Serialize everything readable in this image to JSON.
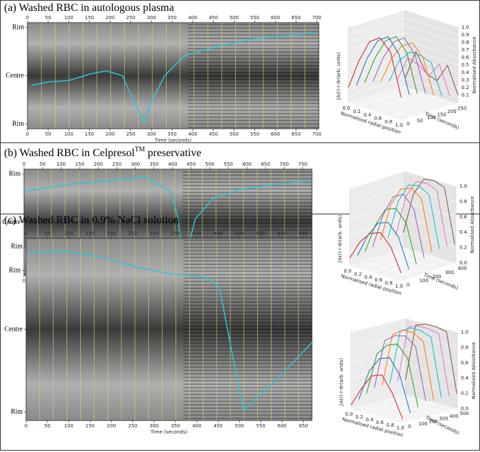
{
  "chart_data": [
    {
      "type": "kymograph",
      "title": "(a)  Washed RBC in autologous plasma",
      "xlabel": "Time (seconds)",
      "xlim": [
        0,
        705
      ],
      "xticks": [
        0,
        50,
        100,
        150,
        200,
        250,
        300,
        350,
        400,
        450,
        500,
        550,
        600,
        650,
        700
      ],
      "ylim": [
        -1.1,
        1.1
      ],
      "yticks": [
        {
          "value": 1,
          "label": "Rim"
        },
        {
          "value": 0,
          "label": "Centre"
        },
        {
          "value": -1,
          "label": "Rim"
        }
      ],
      "x": [
        10,
        50,
        100,
        150,
        190,
        230,
        250,
        265,
        282,
        300,
        332,
        380,
        465,
        547,
        700
      ],
      "values": [
        -0.2,
        -0.13,
        -0.1,
        0.03,
        0.1,
        0,
        -0.4,
        -0.67,
        -0.97,
        -0.54,
        0,
        0.41,
        0.62,
        0.76,
        0.89
      ],
      "color": "#2ec4d6"
    },
    {
      "type": "surface3d",
      "side_label": "∫A(r)·r·dr(arb. units)",
      "xlabel": "Normalised radial position",
      "ylabel": "Time (seconds)",
      "zlabel": "Normalised Absorbance",
      "xlim": [
        0,
        1
      ],
      "xticks": [
        {
          "value": 0,
          "label": "0.0"
        },
        {
          "value": 0.2,
          "label": "0.2"
        },
        {
          "value": 0.4,
          "label": "0.4"
        },
        {
          "value": 0.6,
          "label": "0.6"
        },
        {
          "value": 0.8,
          "label": "0.8"
        },
        {
          "value": 1,
          "label": "1.0"
        }
      ],
      "ylim": [
        0,
        280
      ],
      "yticks": [
        0,
        50,
        100,
        150,
        200,
        250
      ],
      "zlim": [
        0,
        1
      ],
      "zticks": [
        {
          "value": 0.1,
          "label": "0.1"
        },
        {
          "value": 0.2,
          "label": "0.2"
        },
        {
          "value": 0.3,
          "label": "0.3"
        },
        {
          "value": 0.4,
          "label": "0.4"
        },
        {
          "value": 0.5,
          "label": "0.5"
        },
        {
          "value": 0.6,
          "label": "0.6"
        },
        {
          "value": 0.7,
          "label": "0.7"
        },
        {
          "value": 0.8,
          "label": "0.8"
        },
        {
          "value": 0.9,
          "label": "0.9"
        },
        {
          "value": 1,
          "label": "1.0"
        }
      ],
      "x": [
        0,
        0.2,
        0.4,
        0.6,
        0.8,
        1
      ],
      "profiles": [
        {
          "time": 0,
          "color": "#d62728",
          "values": [
            0.2,
            0.6,
            0.9,
            1.0,
            0.85,
            0.3
          ]
        },
        {
          "time": 40,
          "color": "#1f77b4",
          "values": [
            0.2,
            0.6,
            0.88,
            0.98,
            0.8,
            0.3
          ]
        },
        {
          "time": 80,
          "color": "#2ca02c",
          "values": [
            0.2,
            0.58,
            0.85,
            0.95,
            0.78,
            0.28
          ]
        },
        {
          "time": 120,
          "color": "#9467bd",
          "values": [
            0.18,
            0.55,
            0.8,
            0.9,
            0.72,
            0.25
          ]
        },
        {
          "time": 160,
          "color": "#ff7f0e",
          "values": [
            0.15,
            0.5,
            0.72,
            0.8,
            0.65,
            0.2
          ]
        },
        {
          "time": 200,
          "color": "#17becf",
          "values": [
            0.12,
            0.45,
            0.6,
            0.6,
            0.55,
            0.15
          ]
        },
        {
          "time": 240,
          "color": "#e377c2",
          "values": [
            0.1,
            0.45,
            0.4,
            0.3,
            0.5,
            0.12
          ]
        },
        {
          "time": 280,
          "color": "#8c564b",
          "values": [
            0.1,
            0.5,
            0.25,
            0.2,
            0.45,
            0.1
          ]
        }
      ]
    },
    {
      "type": "kymograph",
      "title": "(b) Washed RBC in Celpresol",
      "title_superscript": "TM",
      "title_suffix": " preservative",
      "xlabel": "Time (seconds)",
      "xlim": [
        0,
        775
      ],
      "xticks": [
        0,
        50,
        100,
        150,
        200,
        250,
        300,
        350,
        400,
        450,
        500,
        550,
        600,
        650,
        700,
        750
      ],
      "ylim": [
        -1.1,
        1.1
      ],
      "yticks": [
        {
          "value": 1,
          "label": "Rim"
        },
        {
          "value": 0,
          "label": "Centre"
        },
        {
          "value": -1,
          "label": "Rim"
        }
      ],
      "x": [
        0,
        120,
        304,
        323,
        397,
        415,
        428,
        461,
        507,
        581,
        673,
        775
      ],
      "values": [
        0.64,
        0.78,
        0.92,
        0.95,
        0.62,
        0.07,
        -0.93,
        0.07,
        0.48,
        0.68,
        0.78,
        0.86
      ],
      "color": "#2ec4d6"
    },
    {
      "type": "surface3d",
      "side_label": "∫A(r)·r·dr(arb. units)",
      "xlabel": "Normalised radial position",
      "ylabel": "Time (seconds)",
      "zlabel": "Normalised Absorbance",
      "xlim": [
        0,
        1
      ],
      "xticks": [
        {
          "value": 0,
          "label": "0.0"
        },
        {
          "value": 0.2,
          "label": "0.2"
        },
        {
          "value": 0.4,
          "label": "0.4"
        },
        {
          "value": 0.6,
          "label": "0.6"
        },
        {
          "value": 0.8,
          "label": "0.8"
        },
        {
          "value": 1,
          "label": "1.0"
        }
      ],
      "ylim": [
        0,
        430
      ],
      "yticks": [
        0,
        100,
        200,
        300,
        400
      ],
      "zlim": [
        0,
        1
      ],
      "zticks": [
        {
          "value": 0,
          "label": "0.0"
        },
        {
          "value": 0.2,
          "label": "0.2"
        },
        {
          "value": 0.4,
          "label": "0.4"
        },
        {
          "value": 0.6,
          "label": "0.6"
        },
        {
          "value": 0.8,
          "label": "0.8"
        },
        {
          "value": 1,
          "label": "1.0"
        }
      ],
      "x": [
        0,
        0.2,
        0.4,
        0.6,
        0.8,
        1
      ],
      "profiles": [
        {
          "time": 0,
          "color": "#d62728",
          "values": [
            0.1,
            0.35,
            0.5,
            0.55,
            0.4,
            0.1
          ]
        },
        {
          "time": 60,
          "color": "#1f77b4",
          "values": [
            0.1,
            0.4,
            0.6,
            0.65,
            0.5,
            0.12
          ]
        },
        {
          "time": 120,
          "color": "#2ca02c",
          "values": [
            0.12,
            0.5,
            0.75,
            0.8,
            0.65,
            0.15
          ]
        },
        {
          "time": 180,
          "color": "#9467bd",
          "values": [
            0.15,
            0.6,
            0.88,
            0.95,
            0.8,
            0.2
          ]
        },
        {
          "time": 240,
          "color": "#ff7f0e",
          "values": [
            0.2,
            0.7,
            0.95,
            1.0,
            0.9,
            0.25
          ]
        },
        {
          "time": 300,
          "color": "#17becf",
          "values": [
            0.2,
            0.72,
            0.97,
            1.0,
            0.92,
            0.25
          ]
        },
        {
          "time": 360,
          "color": "#e377c2",
          "values": [
            0.2,
            0.75,
            0.98,
            1.0,
            0.95,
            0.25
          ]
        },
        {
          "time": 420,
          "color": "#8c564b",
          "values": [
            0.2,
            0.75,
            0.98,
            1.0,
            0.95,
            0.25
          ]
        }
      ]
    },
    {
      "type": "kymograph",
      "title": "(c) Washed RBC in 0.9% NaCl solution",
      "xlabel": "Time (seconds)",
      "xlim": [
        0,
        670
      ],
      "xticks": [
        0,
        50,
        100,
        150,
        200,
        250,
        300,
        350,
        400,
        450,
        500,
        550,
        600,
        650
      ],
      "ylim": [
        -1.1,
        1.1
      ],
      "yticks": [
        {
          "value": 1,
          "label": "Rim"
        },
        {
          "value": 0,
          "label": "Centre"
        },
        {
          "value": -1,
          "label": "Rim"
        }
      ],
      "x": [
        3,
        100,
        180,
        260,
        341,
        421,
        453,
        469,
        509,
        582,
        670
      ],
      "values": [
        0.93,
        0.94,
        0.87,
        0.75,
        0.67,
        0.63,
        0.51,
        0.08,
        -0.98,
        -0.63,
        -0.16
      ],
      "color": "#2ec4d6"
    },
    {
      "type": "surface3d",
      "side_label": "∫A(r)·r·dr(arb. units)",
      "xlabel": "Normalised radial position",
      "ylabel": "Time (seconds)",
      "zlabel": "Normalised Absorbance",
      "xlim": [
        0,
        1
      ],
      "xticks": [
        {
          "value": 0,
          "label": "0.0"
        },
        {
          "value": 0.2,
          "label": "0.2"
        },
        {
          "value": 0.4,
          "label": "0.4"
        },
        {
          "value": 0.6,
          "label": "0.6"
        },
        {
          "value": 0.8,
          "label": "0.8"
        },
        {
          "value": 1,
          "label": "1.0"
        }
      ],
      "ylim": [
        0,
        530
      ],
      "yticks": [
        0,
        100,
        200,
        300,
        400,
        500
      ],
      "zlim": [
        0,
        1
      ],
      "zticks": [
        {
          "value": 0,
          "label": "0.0"
        },
        {
          "value": 0.2,
          "label": "0.2"
        },
        {
          "value": 0.4,
          "label": "0.4"
        },
        {
          "value": 0.6,
          "label": "0.6"
        },
        {
          "value": 0.8,
          "label": "0.8"
        },
        {
          "value": 1,
          "label": "1.0"
        }
      ],
      "x": [
        0,
        0.2,
        0.4,
        0.6,
        0.8,
        1
      ],
      "profiles": [
        {
          "time": 0,
          "color": "#d62728",
          "values": [
            0.05,
            0.3,
            0.5,
            0.55,
            0.35,
            0.05
          ]
        },
        {
          "time": 75,
          "color": "#1f77b4",
          "values": [
            0.1,
            0.5,
            0.7,
            0.75,
            0.55,
            0.1
          ]
        },
        {
          "time": 150,
          "color": "#2ca02c",
          "values": [
            0.15,
            0.7,
            0.85,
            0.9,
            0.75,
            0.15
          ]
        },
        {
          "time": 225,
          "color": "#9467bd",
          "values": [
            0.2,
            0.85,
            0.95,
            0.98,
            0.88,
            0.2
          ]
        },
        {
          "time": 300,
          "color": "#ff7f0e",
          "values": [
            0.2,
            0.9,
            1.0,
            1.0,
            0.92,
            0.2
          ]
        },
        {
          "time": 375,
          "color": "#17becf",
          "values": [
            0.2,
            0.92,
            1.0,
            1.0,
            0.95,
            0.2
          ]
        },
        {
          "time": 450,
          "color": "#e377c2",
          "values": [
            0.2,
            0.95,
            1.0,
            1.0,
            0.97,
            0.2
          ]
        },
        {
          "time": 525,
          "color": "#8c564b",
          "values": [
            0.2,
            0.95,
            1.0,
            1.0,
            0.97,
            0.2
          ]
        }
      ]
    }
  ]
}
